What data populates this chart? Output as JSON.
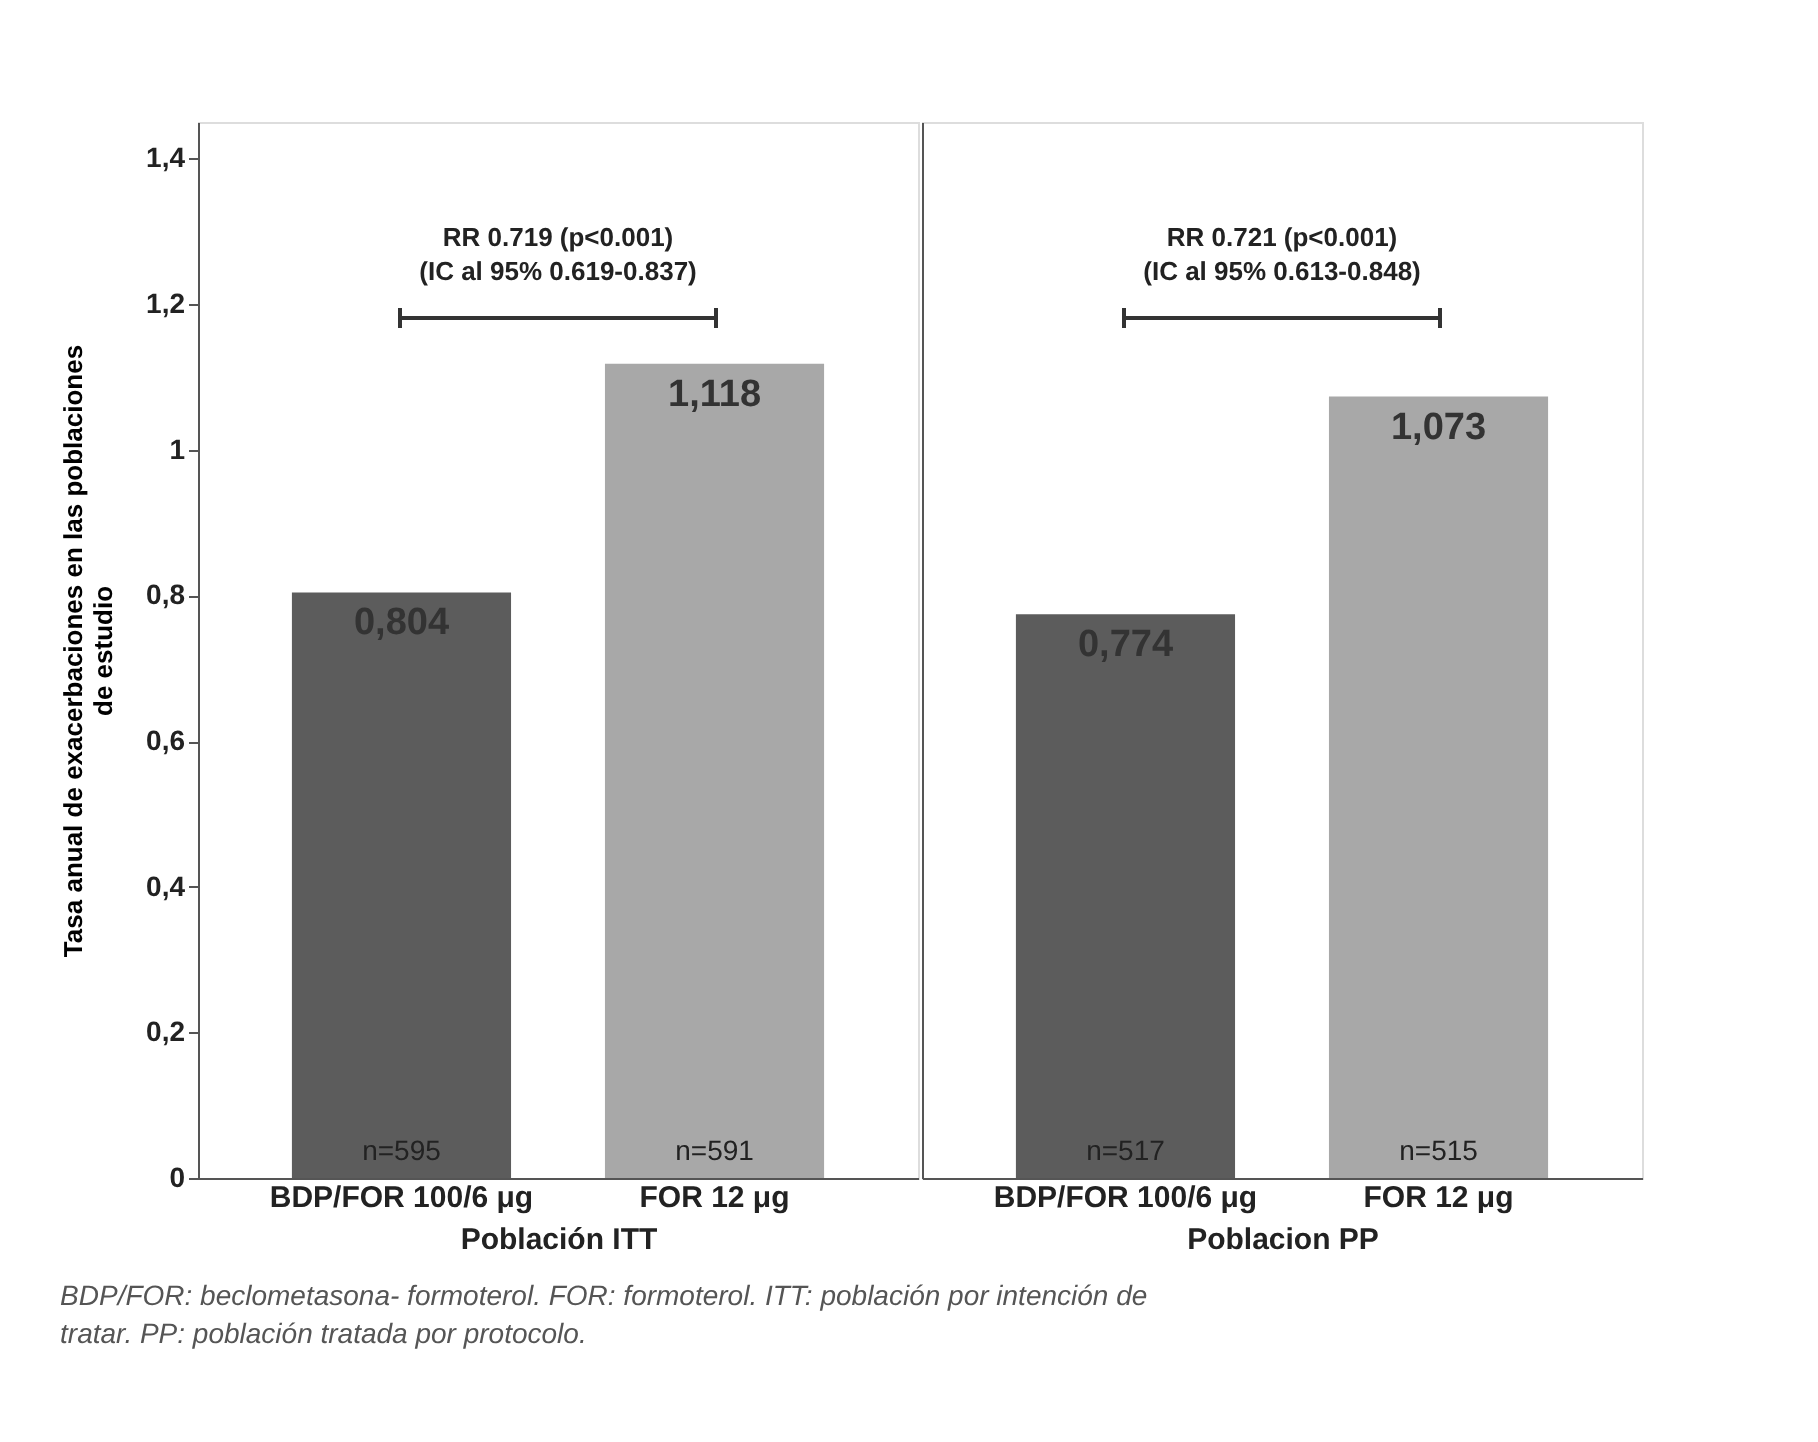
{
  "chart_data": [
    {
      "type": "bar",
      "categories": [
        "BDP/FOR 100/6 μg",
        "FOR 12 μg"
      ],
      "values": [
        0.804,
        1.118
      ],
      "colors": [
        "#5c5c5c",
        "#a8a8a8"
      ],
      "value_labels": [
        "0,804",
        "1,118"
      ],
      "xlabel": "Población ITT",
      "ylabel": "Tasa anual de exacerbaciones en las poblaciones\nde estudio",
      "ylim": [
        0,
        1.45
      ],
      "yticks": [
        0,
        {
          "value": 0.2,
          "label": "0,2"
        },
        {
          "value": 0.4,
          "label": "0,4"
        },
        {
          "value": 0.6,
          "label": "0,6"
        },
        {
          "value": 0.8,
          "label": "0,8"
        },
        1,
        {
          "value": 1.2,
          "label": "1,2"
        },
        {
          "value": 1.4,
          "label": "1,4"
        }
      ],
      "annotations": [
        "RR 0.719 (p<0.001)\n(IC al 95% 0.619-0.837)",
        "n=595",
        "n=591",
        "BDP/FOR: beclometasona- formoterol. FOR: formoterol. ITT: población por intención de\ntratar. PP: población tratada por protocolo."
      ]
    },
    {
      "type": "bar",
      "categories": [
        "BDP/FOR 100/6 μg",
        "FOR 12 μg"
      ],
      "values": [
        0.774,
        1.073
      ],
      "colors": [
        "#5c5c5c",
        "#a8a8a8"
      ],
      "value_labels": [
        "0,774",
        "1,073"
      ],
      "xlabel": "Poblacion PP",
      "ylim": [
        0,
        1.45
      ],
      "tick_labels": "x",
      "annotations": [
        "RR 0.721 (p<0.001)\n(IC al 95% 0.613-0.848)",
        "n=517",
        "n=515"
      ]
    }
  ]
}
